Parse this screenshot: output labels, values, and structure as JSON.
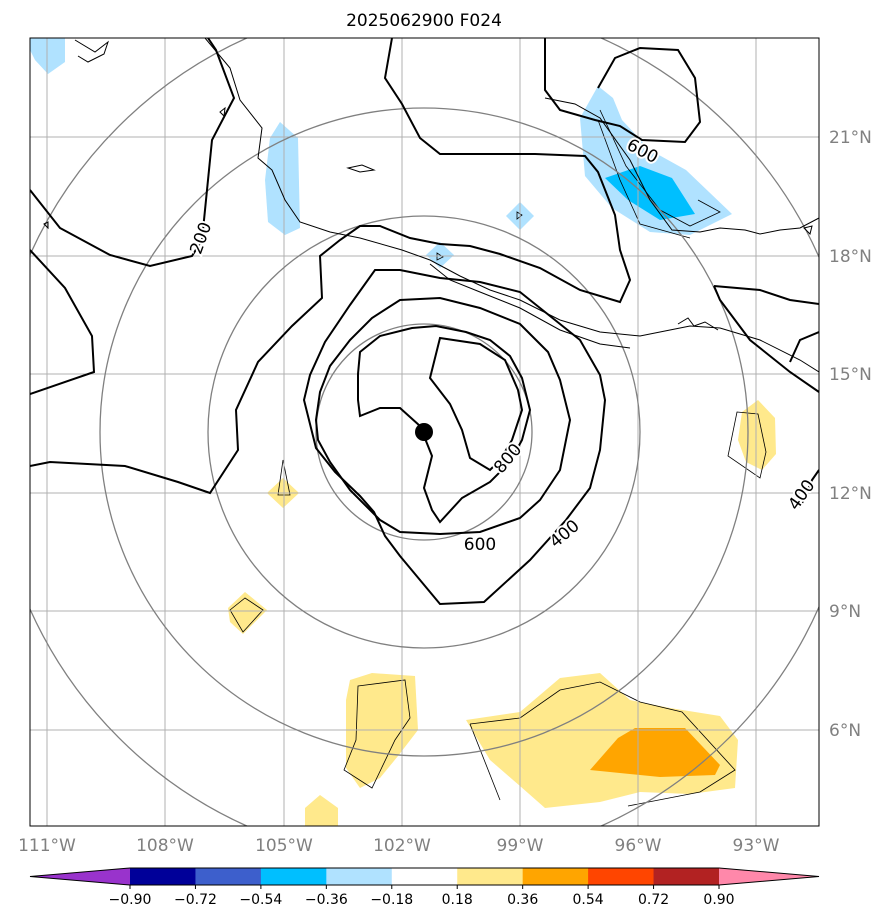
{
  "title": "2025062900 F024",
  "map": {
    "lat_labels": [
      "21°N",
      "18°N",
      "15°N",
      "12°N",
      "9°N",
      "6°N"
    ],
    "lon_labels": [
      "111°W",
      "108°W",
      "105°W",
      "102°W",
      "99°W",
      "96°W",
      "93°W"
    ],
    "contour_labels": [
      "200",
      "600",
      "800",
      "400",
      "600",
      "400"
    ],
    "center_marker": "storm-center"
  },
  "colorbar": {
    "ticks": [
      "−0.90",
      "−0.72",
      "−0.54",
      "−0.36",
      "−0.18",
      "0.18",
      "0.36",
      "0.54",
      "0.72",
      "0.90"
    ],
    "colors": [
      "#9933cc",
      "#000099",
      "#3d5fcc",
      "#00bfff",
      "#b0e2ff",
      "#ffffff",
      "#ffe98c",
      "#ffa500",
      "#ff4500",
      "#b22222",
      "#ff88aa"
    ]
  }
}
